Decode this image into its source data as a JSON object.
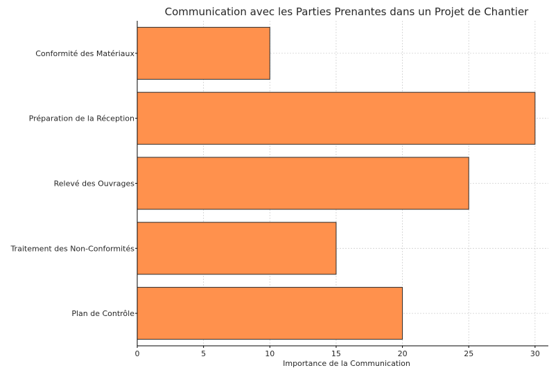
{
  "chart_data": {
    "type": "bar",
    "orientation": "horizontal",
    "title": "Communication avec les Parties Prenantes dans un Projet de Chantier",
    "xlabel": "Importance de la Communication",
    "ylabel": "",
    "categories": [
      "Conformité des Matériaux",
      "Préparation de la Réception",
      "Relevé des Ouvrages",
      "Traitement des Non-Conformités",
      "Plan de Contrôle"
    ],
    "values": [
      10,
      30,
      25,
      15,
      20
    ],
    "xlim": [
      0,
      31
    ],
    "xticks": [
      0,
      5,
      10,
      15,
      20,
      25,
      30
    ],
    "grid": true,
    "bar_color": "#ff914d",
    "edge_color": "#2b2b2b"
  }
}
